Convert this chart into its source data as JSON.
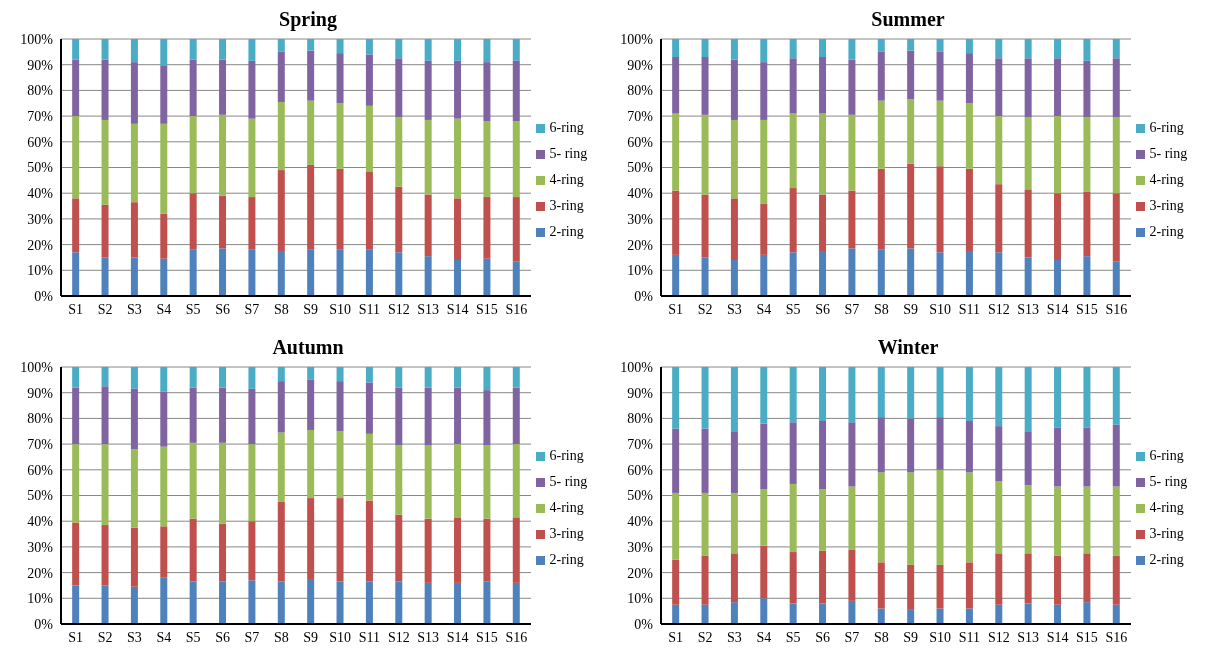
{
  "chart_data": [
    {
      "type": "bar",
      "title": "Spring",
      "stacked": true,
      "grid": "y",
      "legend": "right",
      "categories": [
        "S1",
        "S2",
        "S3",
        "S4",
        "S5",
        "S6",
        "S7",
        "S8",
        "S9",
        "S10",
        "S11",
        "S12",
        "S13",
        "S14",
        "S15",
        "S16"
      ],
      "ylim": [
        0,
        100
      ],
      "yticks": [
        {
          "value": 0,
          "label": "0%"
        },
        {
          "value": 10,
          "label": "10%"
        },
        {
          "value": 20,
          "label": "20%"
        },
        {
          "value": 30,
          "label": "30%"
        },
        {
          "value": 40,
          "label": "40%"
        },
        {
          "value": 50,
          "label": "50%"
        },
        {
          "value": 60,
          "label": "60%"
        },
        {
          "value": 70,
          "label": "70%"
        },
        {
          "value": 80,
          "label": "80%"
        },
        {
          "value": 90,
          "label": "90%"
        },
        {
          "value": 100,
          "label": "100%"
        }
      ],
      "series": [
        {
          "name": "2-ring",
          "color": "#4f81bd",
          "values": [
            17,
            15,
            15,
            14.5,
            18,
            18.5,
            18,
            17.5,
            18,
            18,
            18,
            17,
            15.5,
            14,
            14.5,
            13.5
          ]
        },
        {
          "name": "3-ring",
          "color": "#c0504d",
          "values": [
            21,
            20.5,
            21.5,
            17.5,
            22,
            20.5,
            20.5,
            31.5,
            33,
            31.5,
            30.5,
            25.5,
            24,
            24,
            24,
            25
          ]
        },
        {
          "name": "4-ring",
          "color": "#9bbb59",
          "values": [
            32,
            33,
            30.5,
            35,
            30,
            31.5,
            30.5,
            26.5,
            25,
            25.5,
            25.5,
            27,
            29,
            31,
            29.5,
            29.5
          ]
        },
        {
          "name": "5- ring",
          "color": "#8064a2",
          "values": [
            22,
            23.5,
            24,
            22.5,
            22,
            21.5,
            22.5,
            19.5,
            19.5,
            19.5,
            20,
            23,
            23,
            22.5,
            23,
            23.5
          ]
        },
        {
          "name": "6-ring",
          "color": "#4bacc6",
          "values": [
            8,
            8,
            9,
            10.5,
            8,
            8,
            8.5,
            5,
            4.5,
            5.5,
            6,
            7.5,
            8.5,
            8.5,
            9,
            8.5
          ]
        }
      ]
    },
    {
      "type": "bar",
      "title": "Summer",
      "stacked": true,
      "grid": "y",
      "legend": "right",
      "categories": [
        "S1",
        "S2",
        "S3",
        "S4",
        "S5",
        "S6",
        "S7",
        "S8",
        "S9",
        "S10",
        "S11",
        "S12",
        "S13",
        "S14",
        "S15",
        "S16"
      ],
      "ylim": [
        0,
        100
      ],
      "yticks": [
        {
          "value": 0,
          "label": "0%"
        },
        {
          "value": 10,
          "label": "10%"
        },
        {
          "value": 20,
          "label": "20%"
        },
        {
          "value": 30,
          "label": "30%"
        },
        {
          "value": 40,
          "label": "40%"
        },
        {
          "value": 50,
          "label": "50%"
        },
        {
          "value": 60,
          "label": "60%"
        },
        {
          "value": 70,
          "label": "70%"
        },
        {
          "value": 80,
          "label": "80%"
        },
        {
          "value": 90,
          "label": "90%"
        },
        {
          "value": 100,
          "label": "100%"
        }
      ],
      "series": [
        {
          "name": "2-ring",
          "color": "#4f81bd",
          "values": [
            16,
            15,
            14,
            16,
            17,
            17.5,
            18.5,
            18,
            18.5,
            17,
            17.5,
            17,
            15,
            14,
            15.5,
            13.5
          ]
        },
        {
          "name": "3-ring",
          "color": "#c0504d",
          "values": [
            25,
            24.5,
            24,
            20,
            25,
            22,
            22.5,
            31.5,
            33,
            33.5,
            32,
            26.5,
            26.5,
            26,
            25,
            26.5
          ]
        },
        {
          "name": "4-ring",
          "color": "#9bbb59",
          "values": [
            30,
            31,
            30.5,
            32.5,
            29,
            31.5,
            29.5,
            26.5,
            25,
            25.5,
            25.5,
            26.5,
            28,
            30,
            29,
            29.5
          ]
        },
        {
          "name": "5- ring",
          "color": "#8064a2",
          "values": [
            22,
            22.5,
            23.5,
            22.5,
            21.5,
            22,
            21.5,
            19,
            19,
            19,
            19.5,
            22.5,
            23,
            22.5,
            22,
            23
          ]
        },
        {
          "name": "6-ring",
          "color": "#4bacc6",
          "values": [
            7,
            7,
            8,
            9,
            7.5,
            7,
            8,
            5,
            4.5,
            5,
            5.5,
            7.5,
            7.5,
            7.5,
            8.5,
            7.5
          ]
        }
      ]
    },
    {
      "type": "bar",
      "title": "Autumn",
      "stacked": true,
      "grid": "y",
      "legend": "right",
      "categories": [
        "S1",
        "S2",
        "S3",
        "S4",
        "S5",
        "S6",
        "S7",
        "S8",
        "S9",
        "S10",
        "S11",
        "S12",
        "S13",
        "S14",
        "S15",
        "S16"
      ],
      "ylim": [
        0,
        100
      ],
      "yticks": [
        {
          "value": 0,
          "label": "0%"
        },
        {
          "value": 10,
          "label": "10%"
        },
        {
          "value": 20,
          "label": "20%"
        },
        {
          "value": 30,
          "label": "30%"
        },
        {
          "value": 40,
          "label": "40%"
        },
        {
          "value": 50,
          "label": "50%"
        },
        {
          "value": 60,
          "label": "60%"
        },
        {
          "value": 70,
          "label": "70%"
        },
        {
          "value": 80,
          "label": "80%"
        },
        {
          "value": 90,
          "label": "90%"
        },
        {
          "value": 100,
          "label": "100%"
        }
      ],
      "series": [
        {
          "name": "2-ring",
          "color": "#4f81bd",
          "values": [
            15,
            15,
            14.5,
            18,
            16.5,
            16.5,
            17,
            16.5,
            17.5,
            16.5,
            16.5,
            16.5,
            16,
            16,
            16.5,
            16
          ]
        },
        {
          "name": "3-ring",
          "color": "#c0504d",
          "values": [
            24.5,
            23.5,
            23,
            20,
            24.5,
            22.5,
            23,
            31,
            31.5,
            32.5,
            31.5,
            26,
            25,
            25.5,
            24.5,
            25.5
          ]
        },
        {
          "name": "4-ring",
          "color": "#9bbb59",
          "values": [
            30.5,
            31.5,
            30.5,
            31,
            29.5,
            31.5,
            30,
            27,
            26.5,
            26,
            26,
            27,
            28.5,
            28.5,
            28.5,
            28.5
          ]
        },
        {
          "name": "5- ring",
          "color": "#8064a2",
          "values": [
            22,
            22.5,
            23.5,
            21.5,
            21.5,
            21.5,
            21.5,
            20,
            19.5,
            19.5,
            20,
            22.5,
            22.5,
            22,
            21.5,
            22
          ]
        },
        {
          "name": "6-ring",
          "color": "#4bacc6",
          "values": [
            8,
            7.5,
            8.5,
            9.5,
            8,
            8,
            8.5,
            5.5,
            5,
            5.5,
            6,
            8,
            8,
            8,
            9,
            8
          ]
        }
      ]
    },
    {
      "type": "bar",
      "title": "Winter",
      "stacked": true,
      "grid": "y",
      "legend": "right",
      "categories": [
        "S1",
        "S2",
        "S3",
        "S4",
        "S5",
        "S6",
        "S7",
        "S8",
        "S9",
        "S10",
        "S11",
        "S12",
        "S13",
        "S14",
        "S15",
        "S16"
      ],
      "ylim": [
        0,
        100
      ],
      "yticks": [
        {
          "value": 0,
          "label": "0%"
        },
        {
          "value": 10,
          "label": "10%"
        },
        {
          "value": 20,
          "label": "20%"
        },
        {
          "value": 30,
          "label": "30%"
        },
        {
          "value": 40,
          "label": "40%"
        },
        {
          "value": 50,
          "label": "50%"
        },
        {
          "value": 60,
          "label": "60%"
        },
        {
          "value": 70,
          "label": "70%"
        },
        {
          "value": 80,
          "label": "80%"
        },
        {
          "value": 90,
          "label": "90%"
        },
        {
          "value": 100,
          "label": "100%"
        }
      ],
      "series": [
        {
          "name": "2-ring",
          "color": "#4f81bd",
          "values": [
            7.5,
            7.5,
            8.5,
            10,
            8,
            8,
            9,
            6,
            5.5,
            6,
            6,
            7.5,
            8,
            7.5,
            8.5,
            7.5
          ]
        },
        {
          "name": "3-ring",
          "color": "#c0504d",
          "values": [
            17.5,
            19,
            19,
            20.5,
            20,
            20.5,
            20,
            18,
            17.5,
            17,
            18,
            20,
            19.5,
            19,
            19,
            19
          ]
        },
        {
          "name": "4-ring",
          "color": "#9bbb59",
          "values": [
            26,
            24.5,
            23.5,
            22,
            26.5,
            24,
            24.5,
            35,
            36,
            37,
            35,
            28,
            26.5,
            27,
            26,
            27
          ]
        },
        {
          "name": "5- ring",
          "color": "#8064a2",
          "values": [
            25,
            25,
            24,
            25.5,
            24,
            26.5,
            25,
            21.5,
            21,
            20.5,
            20,
            21.5,
            21,
            23,
            23,
            24
          ]
        },
        {
          "name": "6-ring",
          "color": "#4bacc6",
          "values": [
            24,
            24,
            25,
            22,
            21.5,
            21,
            21.5,
            19.5,
            20,
            19.5,
            21,
            23,
            25,
            23.5,
            23.5,
            22.5
          ]
        }
      ]
    }
  ]
}
